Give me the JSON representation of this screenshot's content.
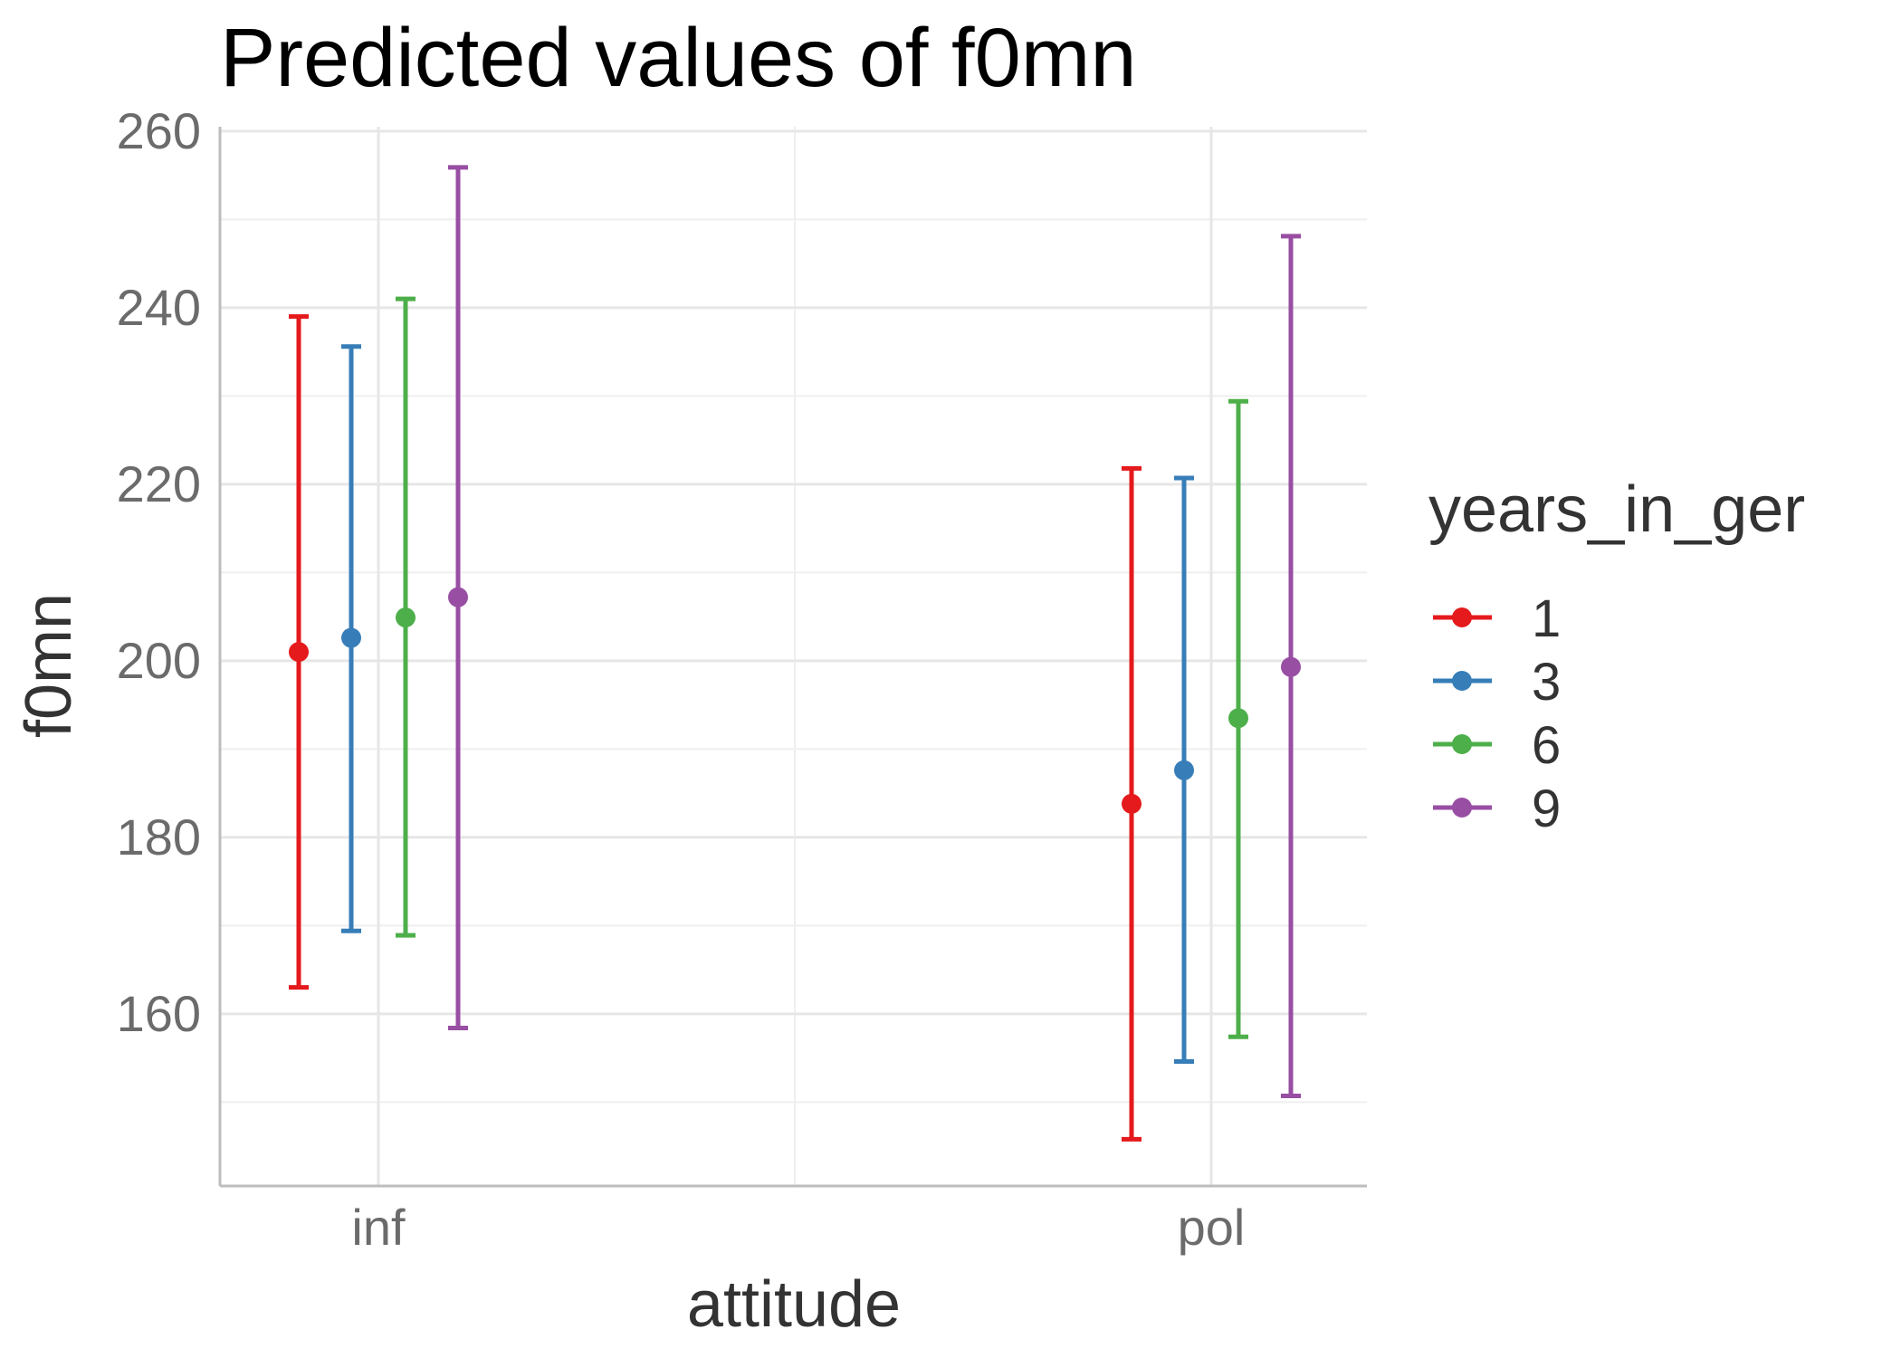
{
  "chart_data": {
    "type": "scatter",
    "title": "Predicted values of f0mn",
    "xlabel": "attitude",
    "ylabel": "f0mn",
    "categories": [
      "inf",
      "pol"
    ],
    "y_ticks": [
      160,
      180,
      200,
      220,
      240,
      260
    ],
    "ylim": [
      140.5,
      260.5
    ],
    "grid": true,
    "legend": {
      "title": "years_in_ger",
      "position": "right"
    },
    "series": [
      {
        "name": "1",
        "color": "#e41a1c",
        "values": [
          201.0,
          183.8
        ],
        "lower": [
          163.0,
          145.8
        ],
        "upper": [
          239.0,
          221.8
        ]
      },
      {
        "name": "3",
        "color": "#377eb8",
        "values": [
          202.6,
          187.6
        ],
        "lower": [
          169.4,
          154.6
        ],
        "upper": [
          235.6,
          220.7
        ]
      },
      {
        "name": "6",
        "color": "#4daf4a",
        "values": [
          204.9,
          193.5
        ],
        "lower": [
          168.9,
          157.4
        ],
        "upper": [
          241.0,
          229.4
        ]
      },
      {
        "name": "9",
        "color": "#984ea3",
        "values": [
          207.2,
          199.3
        ],
        "lower": [
          158.4,
          150.7
        ],
        "upper": [
          255.9,
          248.1
        ]
      }
    ]
  }
}
